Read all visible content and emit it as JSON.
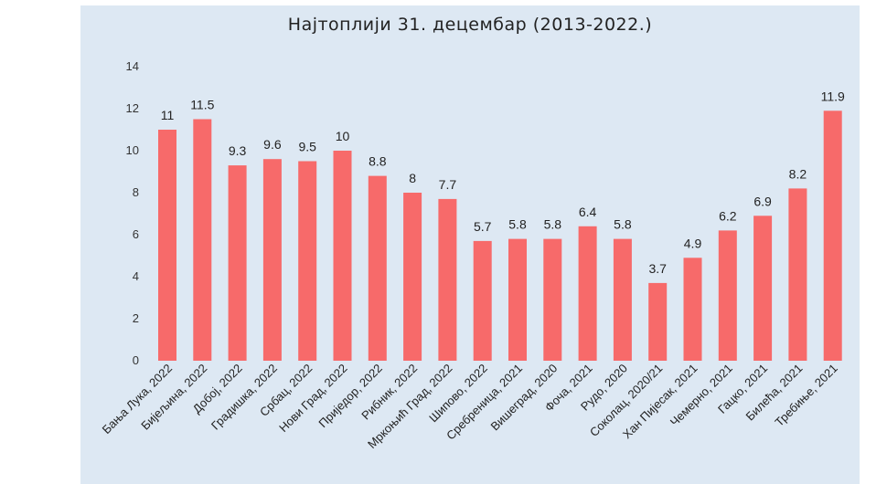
{
  "chart_data": {
    "type": "bar",
    "title": "Најтоплији 31. децембар (2013-2022.)",
    "xlabel": "",
    "ylabel": "",
    "ylim": [
      0,
      14
    ],
    "yticks": [
      0,
      2,
      4,
      6,
      8,
      10,
      12,
      14
    ],
    "grid": false,
    "bar_color": "#f76a6a",
    "background_color": "#dde8f3",
    "categories": [
      "Бања Лука, 2022",
      "Бијељина, 2022",
      "Добој, 2022",
      "Градишка, 2022",
      "Србац, 2022",
      "Нови Град, 2022",
      "Приједор, 2022",
      "Рибник, 2022",
      "Мркоњић Град, 2022",
      "Шипово, 2022",
      "Сребреница, 2021",
      "Вишеград, 2020",
      "Фоча, 2021",
      "Рудо, 2020",
      "Соколац, 2020/21",
      "Хан Пијесак, 2021",
      "Чемерно, 2021",
      "Гацко, 2021",
      "Билећа, 2021",
      "Требиње, 2021"
    ],
    "values": [
      11,
      11.5,
      9.3,
      9.6,
      9.5,
      10,
      8.8,
      8,
      7.7,
      5.7,
      5.8,
      5.8,
      6.4,
      5.8,
      3.7,
      4.9,
      6.2,
      6.9,
      8.2,
      11.9
    ],
    "value_labels": [
      "11",
      "11.5",
      "9.3",
      "9.6",
      "9.5",
      "10",
      "8.8",
      "8",
      "7.7",
      "5.7",
      "5.8",
      "5.8",
      "6.4",
      "5.8",
      "3.7",
      "4.9",
      "6.2",
      "6.9",
      "8.2",
      "11.9"
    ]
  }
}
